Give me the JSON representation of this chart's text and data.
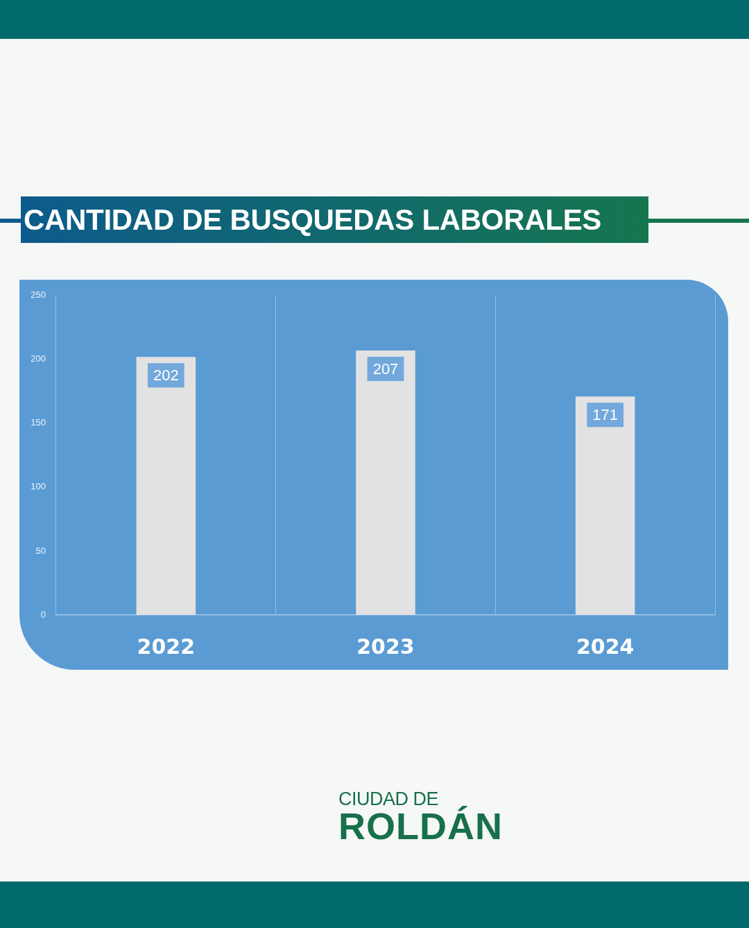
{
  "chart_data": {
    "type": "bar",
    "title": "CANTIDAD DE BUSQUEDAS LABORALES",
    "categories": [
      "2022",
      "2023",
      "2024"
    ],
    "values": [
      202,
      207,
      171
    ],
    "color": "#e2e2e2",
    "ylim": [
      0,
      250
    ],
    "yticks": [
      0,
      50,
      100,
      150,
      200,
      250
    ],
    "grid": "x",
    "data_labels": true,
    "annotations": [
      "CIUDAD DE",
      "ROLDÁN"
    ]
  }
}
